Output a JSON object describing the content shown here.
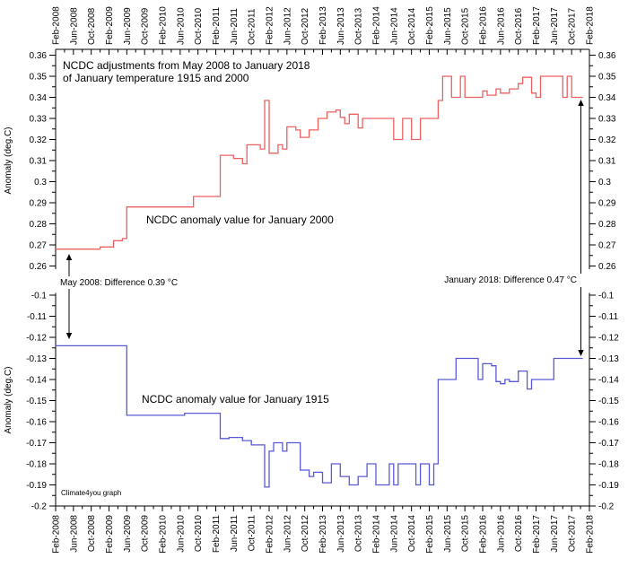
{
  "title": {
    "line1": "NCDC adjustments from May 2008 to January 2018",
    "line2": "of January temperature 1915 and 2000"
  },
  "annotations": {
    "start": "May 2008: Difference 0.39 °C",
    "end": "January 2018: Difference 0.47 °C",
    "credit": "Climate4you graph"
  },
  "colors": {
    "red_line": "#ec6161",
    "red_text": "#f23c3c",
    "blue_line": "#5a5ad8",
    "blue_text": "#3a3ad8",
    "credit_text": "#3333cc",
    "axis": "#000000"
  },
  "chart_data": [
    {
      "type": "line",
      "style": "step",
      "panel": "top",
      "ylabel": "Anomaly (deg.C)",
      "ylim": [
        0.26,
        0.36
      ],
      "ytick_labels": [
        "0.36",
        "0.35",
        "0.34",
        "0.33",
        "0.32",
        "0.31",
        "0.3",
        "0.29",
        "0.28",
        "0.27",
        "0.26"
      ],
      "ytick_values": [
        0.36,
        0.35,
        0.34,
        0.33,
        0.32,
        0.31,
        0.3,
        0.29,
        0.28,
        0.27,
        0.26
      ],
      "x_unit": "months since Feb-2008",
      "xlim": [
        0,
        120
      ],
      "xtick_step_months": 4,
      "xticklabels": [
        "Feb-2008",
        "Jun-2008",
        "Oct-2008",
        "Feb-2009",
        "Jun-2009",
        "Oct-2009",
        "Feb-2010",
        "Jun-2010",
        "Oct-2010",
        "Feb-2011",
        "Jun-2011",
        "Oct-2011",
        "Feb-2012",
        "Jun-2012",
        "Oct-2012",
        "Feb-2013",
        "Jun-2013",
        "Oct-2013",
        "Feb-2014",
        "Jun-2014",
        "Oct-2014",
        "Feb-2015",
        "Jun-2015",
        "Oct-2015",
        "Feb-2016",
        "Jun-2016",
        "Oct-2016",
        "Feb-2017",
        "Jun-2017",
        "Oct-2017",
        "Feb-2018"
      ],
      "series": [
        {
          "name": "NCDC anomaly value for January 2000",
          "color_key": "red_line",
          "end_month": 118.5,
          "steps": [
            [
              0,
              0.268
            ],
            [
              10,
              0.269
            ],
            [
              13,
              0.272
            ],
            [
              15,
              0.273
            ],
            [
              16,
              0.288
            ],
            [
              31,
              0.293
            ],
            [
              37,
              0.3125
            ],
            [
              40,
              0.311
            ],
            [
              42,
              0.3085
            ],
            [
              43,
              0.3175
            ],
            [
              46,
              0.3155
            ],
            [
              47,
              0.3385
            ],
            [
              48,
              0.3135
            ],
            [
              50,
              0.3175
            ],
            [
              51,
              0.3155
            ],
            [
              52,
              0.326
            ],
            [
              54,
              0.3245
            ],
            [
              55,
              0.321
            ],
            [
              57,
              0.3245
            ],
            [
              59,
              0.33
            ],
            [
              61,
              0.333
            ],
            [
              63,
              0.334
            ],
            [
              64,
              0.3305
            ],
            [
              65,
              0.3275
            ],
            [
              66,
              0.332
            ],
            [
              68,
              0.3255
            ],
            [
              69,
              0.33
            ],
            [
              76,
              0.32
            ],
            [
              78,
              0.33
            ],
            [
              80,
              0.32
            ],
            [
              82,
              0.33
            ],
            [
              86,
              0.3385
            ],
            [
              87,
              0.35
            ],
            [
              89,
              0.34
            ],
            [
              91,
              0.35
            ],
            [
              92,
              0.34
            ],
            [
              96,
              0.343
            ],
            [
              97,
              0.341
            ],
            [
              99,
              0.344
            ],
            [
              100,
              0.342
            ],
            [
              102,
              0.344
            ],
            [
              104,
              0.3465
            ],
            [
              105,
              0.3495
            ],
            [
              107,
              0.342
            ],
            [
              108,
              0.34
            ],
            [
              109,
              0.35
            ],
            [
              114,
              0.34
            ],
            [
              115,
              0.35
            ],
            [
              116,
              0.34
            ]
          ]
        }
      ]
    },
    {
      "type": "line",
      "style": "step",
      "panel": "bottom",
      "ylabel": "Anomaly (deg.C)",
      "ylim": [
        -0.2,
        -0.1
      ],
      "ytick_labels": [
        "-0.1",
        "-0.11",
        "-0.12",
        "-0.13",
        "-0.14",
        "-0.15",
        "-0.16",
        "-0.17",
        "-0.18",
        "-0.19",
        "-0.2"
      ],
      "ytick_values": [
        -0.1,
        -0.11,
        -0.12,
        -0.13,
        -0.14,
        -0.15,
        -0.16,
        -0.17,
        -0.18,
        -0.19,
        -0.2
      ],
      "x_unit": "months since Feb-2008",
      "xlim": [
        0,
        120
      ],
      "xtick_step_months": 4,
      "xticklabels": [
        "Feb-2008",
        "Jun-2008",
        "Oct-2008",
        "Feb-2009",
        "Jun-2009",
        "Oct-2009",
        "Feb-2010",
        "Jun-2010",
        "Oct-2010",
        "Feb-2011",
        "Jun-2011",
        "Oct-2011",
        "Feb-2012",
        "Jun-2012",
        "Oct-2012",
        "Feb-2013",
        "Jun-2013",
        "Oct-2013",
        "Feb-2014",
        "Jun-2014",
        "Oct-2014",
        "Feb-2015",
        "Jun-2015",
        "Oct-2015",
        "Feb-2016",
        "Jun-2016",
        "Oct-2016",
        "Feb-2017",
        "Jun-2017",
        "Oct-2017",
        "Feb-2018"
      ],
      "series": [
        {
          "name": "NCDC anomaly value for January 1915",
          "color_key": "blue_line",
          "end_month": 118.5,
          "steps": [
            [
              0,
              -0.124
            ],
            [
              16,
              -0.157
            ],
            [
              29,
              -0.156
            ],
            [
              37,
              -0.168
            ],
            [
              39,
              -0.1675
            ],
            [
              42,
              -0.169
            ],
            [
              44,
              -0.171
            ],
            [
              47,
              -0.191
            ],
            [
              48,
              -0.174
            ],
            [
              49,
              -0.17
            ],
            [
              51,
              -0.174
            ],
            [
              52,
              -0.17
            ],
            [
              55,
              -0.183
            ],
            [
              57,
              -0.186
            ],
            [
              58,
              -0.184
            ],
            [
              60,
              -0.189
            ],
            [
              62,
              -0.18
            ],
            [
              64,
              -0.186
            ],
            [
              66,
              -0.19
            ],
            [
              68,
              -0.186
            ],
            [
              70,
              -0.18
            ],
            [
              72,
              -0.19
            ],
            [
              75,
              -0.18
            ],
            [
              76,
              -0.19
            ],
            [
              77,
              -0.18
            ],
            [
              81,
              -0.19
            ],
            [
              82,
              -0.18
            ],
            [
              84,
              -0.19
            ],
            [
              85,
              -0.18
            ],
            [
              86,
              -0.14
            ],
            [
              90,
              -0.13
            ],
            [
              95,
              -0.14
            ],
            [
              96,
              -0.1325
            ],
            [
              98,
              -0.1335
            ],
            [
              99,
              -0.141
            ],
            [
              100,
              -0.142
            ],
            [
              101,
              -0.14
            ],
            [
              102,
              -0.141
            ],
            [
              104,
              -0.136
            ],
            [
              106,
              -0.1445
            ],
            [
              107,
              -0.14
            ],
            [
              112,
              -0.13
            ]
          ]
        }
      ]
    }
  ]
}
